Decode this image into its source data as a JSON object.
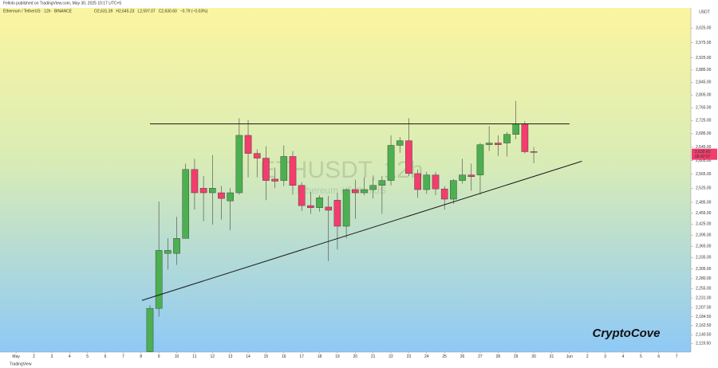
{
  "chart_data": {
    "type": "candlestick",
    "publisher": "Fellolo published on TradingView.com, May 30, 2025 10:17 UTC+5",
    "title": "Ethereum / TetherUS · 12h · BINANCE",
    "header_values": [
      "O2,631.39",
      "H2,645.23",
      "L2,597.07",
      "C2,630.60",
      "−0.79 (−0.03%)"
    ],
    "watermark": "ETHUSDT, 12h",
    "watermark_sub": "Ethereum / TetherUS",
    "y_axis_label": "USDT",
    "brand": "CryptoCove",
    "footer": "TradingView",
    "log_scale": true,
    "up_color": "#4caf50",
    "down_color": "#f23d6d",
    "line_color": "#1a1a1a",
    "xlim": [
      0.1,
      38.8
    ],
    "ylim": [
      2099,
      3094
    ],
    "xticks": [
      {
        "value": 1,
        "label": "May"
      },
      2,
      3,
      4,
      5,
      6,
      7,
      8,
      9,
      10,
      11,
      12,
      13,
      14,
      15,
      16,
      17,
      18,
      19,
      20,
      21,
      22,
      23,
      24,
      25,
      26,
      27,
      28,
      29,
      30,
      31,
      {
        "value": 32,
        "label": "Jun"
      },
      {
        "value": 33,
        "label": "2"
      },
      {
        "value": 34,
        "label": "3"
      },
      {
        "value": 35,
        "label": "4"
      },
      {
        "value": 36,
        "label": "5"
      },
      {
        "value": 37,
        "label": "6"
      },
      {
        "value": 38,
        "label": "7"
      }
    ],
    "yticks": [
      {
        "value": 3025,
        "label": "3,025.00"
      },
      {
        "value": 2975,
        "label": "2,975.00"
      },
      {
        "value": 2925,
        "label": "2,925.00"
      },
      {
        "value": 2885,
        "label": "2,885.00"
      },
      {
        "value": 2845,
        "label": "2,845.00"
      },
      {
        "value": 2805,
        "label": "2,805.00"
      },
      {
        "value": 2765,
        "label": "2,765.00"
      },
      {
        "value": 2725,
        "label": "2,725.00"
      },
      {
        "value": 2685,
        "label": "2,685.00"
      },
      {
        "value": 2645,
        "label": "2,645.00"
      },
      {
        "value": 2605,
        "label": "2,605.00"
      },
      {
        "value": 2565,
        "label": "2,565.00"
      },
      {
        "value": 2525,
        "label": "2,525.00"
      },
      {
        "value": 2485,
        "label": "2,485.00"
      },
      {
        "value": 2455,
        "label": "2,455.00"
      },
      {
        "value": 2425,
        "label": "2,425.00"
      },
      {
        "value": 2395,
        "label": "2,395.00"
      },
      {
        "value": 2365,
        "label": "2,365.00"
      },
      {
        "value": 2335,
        "label": "2,335.00"
      },
      {
        "value": 2305,
        "label": "2,305.00"
      },
      {
        "value": 2280,
        "label": "2,280.00"
      },
      {
        "value": 2255,
        "label": "2,255.00"
      },
      {
        "value": 2231,
        "label": "2,231.00"
      },
      {
        "value": 2207,
        "label": "2,207.00"
      },
      {
        "value": 2184.5,
        "label": "2,184.50"
      },
      {
        "value": 2162.5,
        "label": "2,162.50"
      },
      {
        "value": 2140.5,
        "label": "2,140.50"
      },
      {
        "value": 2119.5,
        "label": "2,119.50"
      }
    ],
    "price_tag": {
      "value": 2630.6,
      "label": "2,630.60",
      "countdown": "06:42:57"
    },
    "candles": {
      "x": [
        8.5,
        9,
        9.5,
        10,
        10.5,
        11,
        11.5,
        12,
        12.5,
        13,
        13.5,
        14,
        14.5,
        15,
        15.5,
        16,
        16.5,
        17,
        17.5,
        18,
        18.5,
        19,
        19.5,
        20,
        20.5,
        21,
        21.5,
        22,
        22.5,
        23,
        23.5,
        24,
        24.5,
        25,
        25.5,
        26,
        26.5,
        27,
        27.5,
        28,
        28.5,
        29,
        29.5,
        30
      ],
      "open": [
        2100,
        2205,
        2346,
        2346,
        2386,
        2579,
        2525,
        2512,
        2512,
        2489,
        2512,
        2680,
        2626,
        2612,
        2551,
        2547,
        2617,
        2533,
        2476,
        2470,
        2472,
        2491,
        2419,
        2521,
        2512,
        2521,
        2533,
        2547,
        2650,
        2664,
        2567,
        2521,
        2563,
        2523,
        2494,
        2547,
        2563,
        2563,
        2652,
        2657,
        2657,
        2683,
        2715,
        2631.39
      ],
      "high": [
        2213,
        2487,
        2386,
        2445,
        2596,
        2610,
        2560,
        2621,
        2531,
        2525,
        2732,
        2727,
        2638,
        2647,
        2584,
        2650,
        2633,
        2542,
        2514,
        2505,
        2503,
        2512,
        2525,
        2549,
        2556,
        2556,
        2560,
        2680,
        2675,
        2732,
        2579,
        2572,
        2572,
        2531,
        2551,
        2610,
        2596,
        2657,
        2708,
        2680,
        2690,
        2786,
        2723,
        2645.23
      ],
      "low": [
        2090,
        2184.5,
        2304,
        2316,
        2386,
        2465,
        2433,
        2423,
        2437,
        2408,
        2507,
        2556,
        2556,
        2491,
        2525,
        2531,
        2507,
        2461,
        2453,
        2459,
        2326,
        2356,
        2386,
        2439,
        2505,
        2496,
        2453,
        2533,
        2628,
        2560,
        2498,
        2509,
        2505,
        2465,
        2481,
        2538,
        2518,
        2507,
        2633,
        2619,
        2617,
        2668,
        2626,
        2597.07
      ],
      "close": [
        2205,
        2354,
        2354,
        2386,
        2579,
        2512,
        2512,
        2525,
        2496,
        2512,
        2680,
        2626,
        2612,
        2547,
        2545,
        2617,
        2533,
        2476,
        2470,
        2498,
        2463,
        2419,
        2521,
        2512,
        2521,
        2533,
        2547,
        2650,
        2664,
        2567,
        2521,
        2563,
        2523,
        2494,
        2547,
        2563,
        2558,
        2652,
        2657,
        2652,
        2683,
        2715,
        2631,
        2630.6
      ]
    },
    "trendlines": [
      {
        "x": [
          8.5,
          32
        ],
        "y": [
          2715,
          2715
        ]
      },
      {
        "x": [
          8.05,
          32.7
        ],
        "y": [
          2225,
          2603
        ]
      }
    ]
  }
}
